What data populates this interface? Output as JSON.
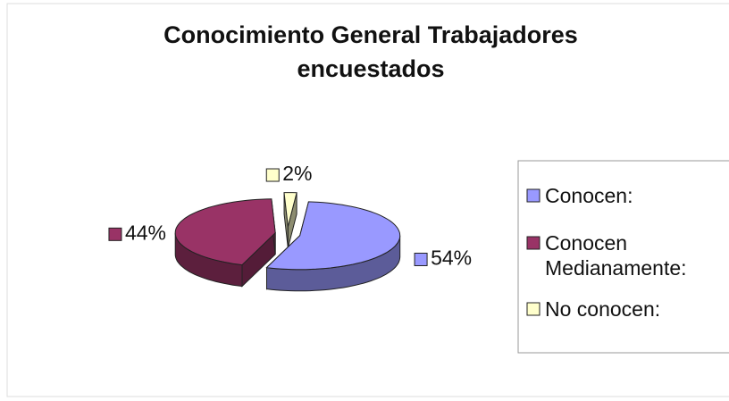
{
  "chart_data": {
    "type": "pie",
    "title": "Conocimiento General Trabajadores encuestados",
    "categories": [
      "Conocen:",
      "Conocen Medianamente:",
      "No conocen:"
    ],
    "values": [
      54,
      44,
      2
    ],
    "value_labels": [
      "54%",
      "44%",
      "2%"
    ],
    "colors": [
      "#9999ff",
      "#993366",
      "#ffffcc"
    ],
    "legend": "right"
  }
}
